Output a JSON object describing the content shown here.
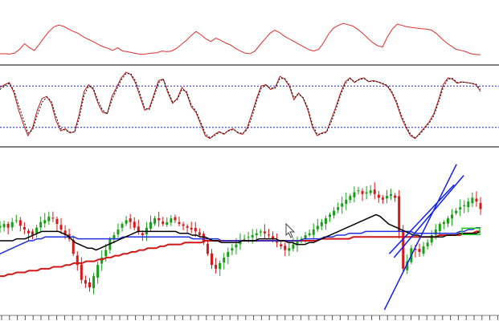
{
  "colors": {
    "background": "#ffffff",
    "separator": "#7f7f7f",
    "top_line": "#e03030",
    "stoch_k": "#c01818",
    "stoch_d": "#101010",
    "stoch_levels": "#2020d0",
    "candle_up": "#16a016",
    "candle_down": "#d81818",
    "ma_black": "#000000",
    "ma_blue": "#2030e0",
    "ma_red": "#d01818",
    "ma_purple": "#9030a0",
    "trendline": "#1020e8",
    "marker_box": "#20d020"
  },
  "chart_data": [
    {
      "type": "line",
      "panel": "top-indicator",
      "title": "",
      "grid": false,
      "ylim": [
        0,
        100
      ],
      "series": [
        {
          "values": [
            12,
            12,
            11,
            14,
            25,
            42,
            30,
            22,
            40,
            60,
            78,
            92,
            97,
            93,
            85,
            78,
            72,
            62,
            55,
            48,
            40,
            33,
            28,
            22,
            30,
            20,
            18,
            15,
            12,
            10,
            12,
            14,
            15,
            20,
            18,
            20,
            28,
            40,
            52,
            66,
            78,
            68,
            56,
            48,
            58,
            52,
            44,
            38,
            28,
            20,
            14,
            12,
            20,
            38,
            55,
            72,
            82,
            75,
            64,
            56,
            48,
            40,
            32,
            24,
            20,
            25,
            45,
            70,
            88,
            96,
            102,
            98,
            94,
            84,
            72,
            58,
            45,
            36,
            32,
            62,
            85,
            100,
            96,
            92,
            90,
            88,
            86,
            85,
            82,
            72,
            58,
            45,
            35,
            25,
            22,
            18,
            12,
            10,
            9
          ]
        }
      ]
    },
    {
      "type": "line",
      "panel": "stochastic",
      "grid": false,
      "ylim": [
        0,
        100
      ],
      "levels": [
        80,
        20
      ],
      "series": [
        {
          "role": "k",
          "values": [
            78,
            82,
            85,
            70,
            45,
            25,
            8,
            20,
            45,
            62,
            65,
            55,
            30,
            15,
            18,
            12,
            14,
            40,
            72,
            82,
            75,
            55,
            42,
            40,
            65,
            78,
            92,
            100,
            97,
            85,
            65,
            45,
            48,
            68,
            88,
            90,
            70,
            55,
            62,
            78,
            70,
            50,
            42,
            25,
            8,
            4,
            10,
            14,
            10,
            16,
            18,
            12,
            10,
            20,
            40,
            62,
            80,
            82,
            75,
            78,
            94,
            90,
            80,
            60,
            70,
            62,
            45,
            20,
            8,
            12,
            14,
            32,
            50,
            70,
            86,
            92,
            85,
            90,
            92,
            86,
            88,
            86,
            83,
            80,
            70,
            55,
            35,
            20,
            8,
            4,
            12,
            20,
            28,
            40,
            60,
            82,
            92,
            90,
            84,
            86,
            85,
            84,
            82,
            72
          ]
        },
        {
          "role": "d",
          "values": [
            75,
            80,
            84,
            74,
            52,
            32,
            12,
            16,
            38,
            56,
            64,
            58,
            36,
            18,
            16,
            13,
            13,
            34,
            66,
            80,
            77,
            59,
            45,
            40,
            60,
            75,
            89,
            98,
            98,
            88,
            69,
            48,
            46,
            64,
            85,
            90,
            73,
            57,
            60,
            75,
            72,
            53,
            44,
            28,
            11,
            5,
            8,
            13,
            11,
            15,
            17,
            13,
            11,
            17,
            35,
            58,
            77,
            81,
            77,
            77,
            91,
            91,
            82,
            63,
            68,
            63,
            48,
            24,
            10,
            11,
            13,
            28,
            46,
            67,
            83,
            91,
            86,
            89,
            91,
            87,
            87,
            86,
            84,
            81,
            72,
            58,
            38,
            23,
            10,
            5,
            10,
            18,
            26,
            37,
            56,
            78,
            90,
            91,
            85,
            86,
            85,
            84,
            83,
            75
          ]
        }
      ]
    },
    {
      "type": "candlestick",
      "panel": "price",
      "grid": false,
      "close": [
        45,
        46,
        44,
        47,
        48,
        45,
        43,
        41,
        40,
        44,
        47,
        48,
        50,
        49,
        46,
        43,
        40,
        38,
        30,
        24,
        16,
        14,
        12,
        18,
        24,
        28,
        32,
        38,
        40,
        43,
        46,
        48,
        47,
        44,
        42,
        40,
        44,
        47,
        49,
        48,
        46,
        47,
        49,
        48,
        46,
        45,
        44,
        43,
        42,
        40,
        36,
        30,
        24,
        22,
        25,
        28,
        31,
        33,
        35,
        37,
        38,
        39,
        40,
        41,
        42,
        41,
        40,
        38,
        36,
        34,
        32,
        33,
        35,
        37,
        38,
        40,
        41,
        43,
        45,
        47,
        49,
        51,
        53,
        55,
        57,
        59,
        61,
        63,
        64,
        62,
        63,
        64,
        62,
        60,
        59,
        61,
        62,
        60,
        42,
        22,
        26,
        33,
        32,
        31,
        34,
        36,
        40,
        43,
        46,
        47,
        49,
        51,
        53,
        55,
        56,
        58,
        60,
        58,
        54
      ],
      "ma_black": [
        37,
        37,
        37,
        37,
        38,
        38,
        38,
        39,
        40,
        41,
        42,
        42,
        42,
        42,
        42,
        41,
        40,
        38,
        36,
        35,
        34,
        33,
        33,
        32,
        33,
        34,
        35,
        36,
        37,
        38,
        39,
        40,
        41,
        42,
        42,
        42,
        42,
        42,
        42,
        42,
        42,
        42,
        42,
        41,
        41,
        41,
        40,
        40,
        39,
        39,
        38,
        37,
        37,
        36,
        36,
        36,
        36,
        36,
        37,
        37,
        37,
        37,
        38,
        38,
        38,
        38,
        38,
        37,
        37,
        36,
        36,
        35,
        35,
        35,
        36,
        36,
        37,
        38,
        39,
        40,
        41,
        42,
        43,
        44,
        45,
        46,
        47,
        48,
        49,
        50,
        51,
        50,
        48,
        46,
        45,
        44,
        43,
        42,
        41,
        40,
        40,
        39,
        39,
        39,
        39,
        39,
        39,
        40,
        40,
        40,
        41,
        41,
        41,
        41,
        41,
        42
      ],
      "ma_blue": [
        30,
        31,
        32,
        33,
        34,
        35,
        36,
        37,
        37,
        38,
        38,
        39,
        39,
        39,
        39,
        39,
        39,
        39,
        39,
        38,
        38,
        38,
        38,
        38,
        38,
        38,
        38,
        38,
        38,
        38,
        39,
        39,
        39,
        39,
        39,
        39,
        39,
        39,
        39,
        39,
        39,
        39,
        39,
        39,
        39,
        39,
        39,
        38,
        38,
        38,
        38,
        38,
        38,
        38,
        37,
        37,
        37,
        37,
        37,
        37,
        37,
        37,
        37,
        37,
        37,
        37,
        37,
        37,
        37,
        37,
        37,
        37,
        37,
        37,
        38,
        38,
        38,
        38,
        38,
        39,
        39,
        39,
        40,
        40,
        40,
        41,
        41,
        41,
        41,
        42,
        42,
        42,
        42,
        42,
        42,
        42,
        42,
        42,
        42,
        42,
        42,
        41,
        41,
        41,
        41,
        41,
        41,
        41,
        41,
        41,
        41,
        41,
        42,
        42,
        43,
        43,
        44,
        44
      ],
      "ma_red": [
        18,
        18,
        19,
        19,
        20,
        20,
        20,
        21,
        21,
        21,
        22,
        22,
        22,
        23,
        23,
        23,
        24,
        24,
        25,
        25,
        25,
        26,
        26,
        26,
        27,
        27,
        28,
        28,
        29,
        29,
        30,
        30,
        31,
        31,
        32,
        32,
        33,
        33,
        33,
        34,
        34,
        35,
        35,
        35,
        35,
        36,
        36,
        36,
        36,
        36,
        37,
        37,
        37,
        37,
        37,
        37,
        37,
        37,
        37,
        37,
        37,
        37,
        37,
        37,
        37,
        37,
        37,
        37,
        37,
        37,
        37,
        37,
        37,
        37,
        37,
        37,
        37,
        37,
        38,
        38,
        38,
        38,
        38,
        38,
        38,
        38,
        39,
        39,
        39,
        39,
        39,
        39,
        39,
        39,
        39,
        39,
        39,
        39,
        39,
        39,
        39,
        39,
        39,
        39,
        39,
        39,
        39,
        40,
        40,
        40,
        40,
        40,
        40,
        41,
        41,
        41,
        42,
        42
      ],
      "trendlines": [
        {
          "from": [
            0.8,
            0
          ],
          "to": [
            0.95,
            78
          ]
        },
        {
          "from": [
            0.81,
            30
          ],
          "to": [
            0.945,
            67
          ]
        },
        {
          "from": [
            0.82,
            28
          ],
          "to": [
            0.965,
            72
          ]
        }
      ],
      "marker_box": {
        "at": [
          0.975,
          42
        ]
      }
    }
  ]
}
